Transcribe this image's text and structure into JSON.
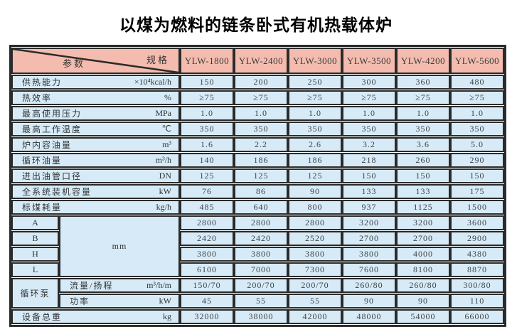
{
  "title": "以煤为燃料的链条卧式有机热载体炉",
  "colors": {
    "header_bg": "#f4bcaf",
    "row_bg": "#d6ebf7",
    "border": "#2b2b2b"
  },
  "table": {
    "corner": {
      "spec_label": "规格",
      "param_label": "参数"
    },
    "model_columns": [
      "YLW-1800",
      "YLW-2400",
      "YLW-3000",
      "YLW-3500",
      "YLW-4200",
      "YLW-5600"
    ],
    "spec_rows": [
      {
        "label": "供热能力",
        "unit": "×10⁴kcal/h",
        "values": [
          "150",
          "200",
          "250",
          "300",
          "360",
          "480"
        ]
      },
      {
        "label": "热效率",
        "unit": "%",
        "values": [
          "≥75",
          "≥75",
          "≥75",
          "≥75",
          "≥75",
          "≥75"
        ]
      },
      {
        "label": "最高使用压力",
        "unit": "MPa",
        "values": [
          "1.0",
          "1.0",
          "1.0",
          "1.0",
          "1.0",
          "1.0"
        ]
      },
      {
        "label": "最高工作温度",
        "unit": "℃",
        "values": [
          "350",
          "350",
          "350",
          "350",
          "350",
          "350"
        ]
      },
      {
        "label": "炉内容油量",
        "unit": "m³",
        "values": [
          "1.6",
          "2.2",
          "2.6",
          "3.2",
          "3.6",
          "5.0"
        ]
      },
      {
        "label": "循环油量",
        "unit": "m³/h",
        "values": [
          "140",
          "186",
          "186",
          "218",
          "260",
          "290"
        ]
      },
      {
        "label": "进出油管口径",
        "unit": "DN",
        "values": [
          "125",
          "125",
          "125",
          "150",
          "150",
          "150"
        ]
      },
      {
        "label": "全系统装机容量",
        "unit": "kW",
        "values": [
          "76",
          "86",
          "90",
          "133",
          "133",
          "175"
        ]
      },
      {
        "label": "标煤耗量",
        "unit": "kg/h",
        "values": [
          "485",
          "640",
          "800",
          "937",
          "1125",
          "1500"
        ]
      }
    ],
    "dimension_group": {
      "unit": "mm",
      "rows": [
        {
          "label": "A",
          "values": [
            "2800",
            "2800",
            "2800",
            "3200",
            "3200",
            "3600"
          ]
        },
        {
          "label": "B",
          "values": [
            "2420",
            "2420",
            "2520",
            "2700",
            "2700",
            "2900"
          ]
        },
        {
          "label": "H",
          "values": [
            "3800",
            "3800",
            "3800",
            "3800",
            "4000",
            "4380"
          ]
        },
        {
          "label": "L",
          "values": [
            "6100",
            "7000",
            "7300",
            "7600",
            "8100",
            "8870"
          ]
        }
      ]
    },
    "pump_group": {
      "label": "循环泵",
      "rows": [
        {
          "label": "流量/扬程",
          "unit": "m³/h/m",
          "values": [
            "150/70",
            "200/70",
            "200/70",
            "260/80",
            "260/80",
            "300/80"
          ]
        },
        {
          "label": "功率",
          "unit": "kW",
          "values": [
            "45",
            "55",
            "55",
            "90",
            "90",
            "110"
          ]
        }
      ]
    },
    "total_row": {
      "label": "设备总重",
      "unit": "kg",
      "values": [
        "32000",
        "38000",
        "42000",
        "48000",
        "54000",
        "66000"
      ]
    }
  }
}
